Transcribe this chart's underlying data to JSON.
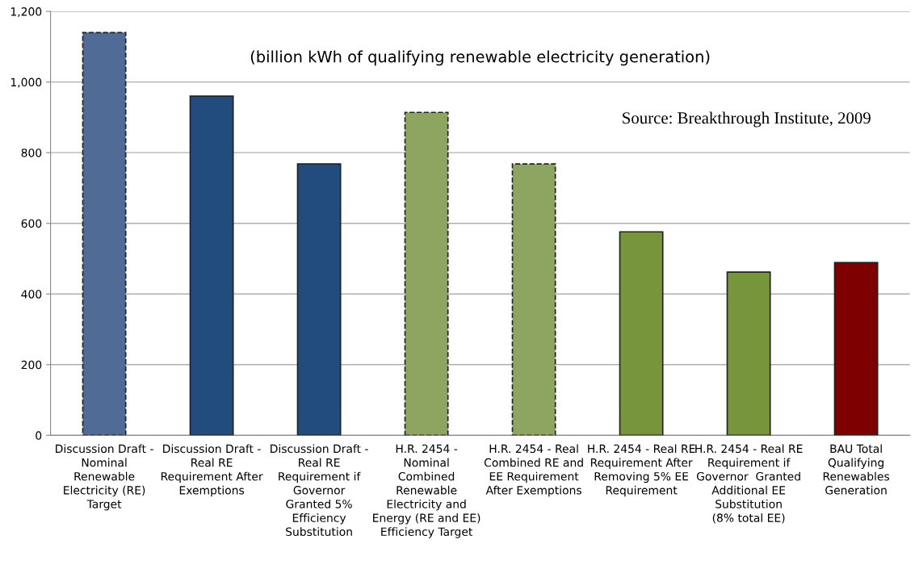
{
  "chart_data": {
    "type": "bar",
    "categories": [
      "Discussion Draft -\nNominal\nRenewable\nElectricity (RE)\nTarget",
      "Discussion Draft -\nReal RE\nRequirement After\nExemptions",
      "Discussion Draft -\nReal RE\nRequirement if\nGovernor\nGranted 5%\nEfficiency\nSubstitution",
      "H.R. 2454 -\nNominal\nCombined\nRenewable\nElectricity and\nEnergy (RE and EE)\nEfficiency Target",
      "H.R. 2454 - Real\nCombined RE and\nEE Requirement\nAfter Exemptions",
      "H.R. 2454 - Real RE\nRequirement After\nRemoving 5% EE\nRequirement",
      "H.R. 2454 - Real RE\nRequirement if\nGovernor  Granted\nAdditional EE\nSubstitution\n(8% total EE)",
      "BAU Total\nQualifying\nRenewables\nGeneration"
    ],
    "series": [
      {
        "line_style": "dashed",
        "values": [
          1140,
          null,
          null,
          914,
          768,
          null,
          null,
          null
        ],
        "colors": [
          "#4f6b96",
          null,
          null,
          "#8ea562",
          "#8ea562",
          null,
          null,
          null
        ]
      },
      {
        "line_style": "solid",
        "values": [
          null,
          960,
          768,
          null,
          null,
          576,
          462,
          489
        ],
        "colors": [
          null,
          "#224b7e",
          "#224b7e",
          null,
          null,
          "#77963b",
          "#77963b",
          "#7f0000"
        ]
      }
    ],
    "ylim": [
      0,
      1200
    ],
    "yticks": [
      0,
      200,
      400,
      600,
      800,
      {
        "value": 1000,
        "label": "1,000"
      },
      {
        "value": 1200,
        "label": "1,200"
      }
    ],
    "grid": "y",
    "legend": false,
    "annotations": [
      "(billion kWh of qualifying renewable electricity generation)",
      "Source: Breakthrough Institute, 2009"
    ]
  }
}
